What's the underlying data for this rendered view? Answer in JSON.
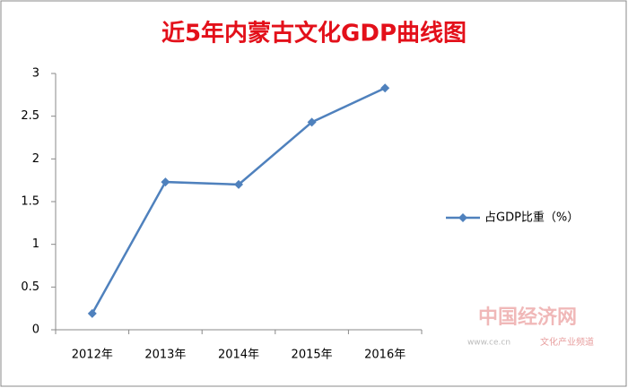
{
  "chart_data": {
    "type": "line",
    "title": "近5年内蒙古文化GDP曲线图",
    "categories": [
      "2012年",
      "2013年",
      "2014年",
      "2015年",
      "2016年"
    ],
    "series": [
      {
        "name": "占GDP比重（%）",
        "color": "#4f81bd",
        "values": [
          0.19,
          1.73,
          1.7,
          2.43,
          2.83
        ]
      }
    ],
    "ylim": [
      0,
      3
    ],
    "yticks": [
      0,
      0.5,
      1,
      1.5,
      2,
      2.5,
      3
    ],
    "grid": false,
    "legend": "right"
  },
  "watermark": {
    "logo": "中国经济网",
    "url": "www.ce.cn",
    "channel": "文化产业频道"
  }
}
